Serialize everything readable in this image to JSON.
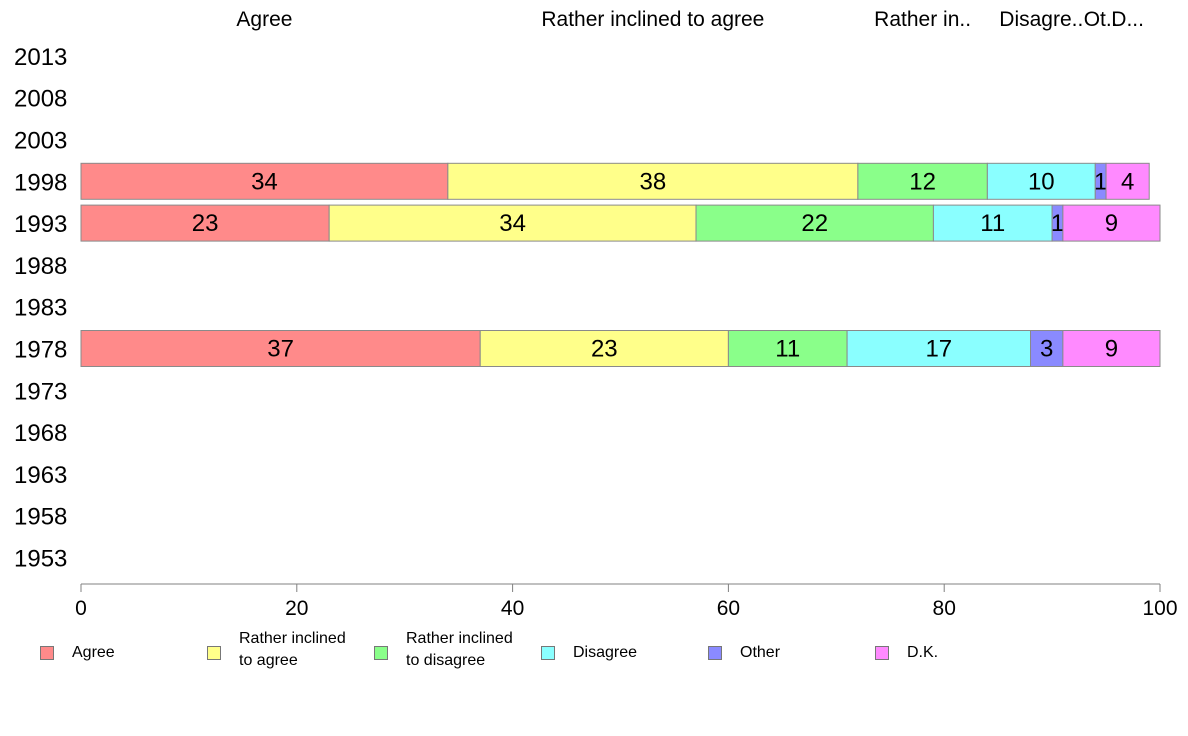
{
  "chart_data": {
    "type": "bar",
    "orientation": "horizontal",
    "stacked": true,
    "categories": [
      "2013",
      "2008",
      "2003",
      "1998",
      "1993",
      "1988",
      "1983",
      "1978",
      "1973",
      "1968",
      "1963",
      "1958",
      "1953"
    ],
    "series": [
      {
        "name": "Agree",
        "color": "#ff8a8a",
        "values": [
          null,
          null,
          null,
          34,
          23,
          null,
          null,
          37,
          null,
          null,
          null,
          null,
          null
        ]
      },
      {
        "name": "Rather inclined to agree",
        "color": "#ffff8a",
        "values": [
          null,
          null,
          null,
          38,
          34,
          null,
          null,
          23,
          null,
          null,
          null,
          null,
          null
        ]
      },
      {
        "name": "Rather inclined to disagree",
        "color": "#8aff8a",
        "values": [
          null,
          null,
          null,
          12,
          22,
          null,
          null,
          11,
          null,
          null,
          null,
          null,
          null
        ]
      },
      {
        "name": "Disagree",
        "color": "#8affff",
        "values": [
          null,
          null,
          null,
          10,
          11,
          null,
          null,
          17,
          null,
          null,
          null,
          null,
          null
        ]
      },
      {
        "name": "Other",
        "color": "#8a8aff",
        "values": [
          null,
          null,
          null,
          1,
          1,
          null,
          null,
          3,
          null,
          null,
          null,
          null,
          null
        ]
      },
      {
        "name": "D.K.",
        "color": "#ff8aff",
        "values": [
          null,
          null,
          null,
          4,
          9,
          null,
          null,
          9,
          null,
          null,
          null,
          null,
          null
        ]
      }
    ],
    "top_labels": [
      "Agree",
      "Rather inclined to agree",
      "Rather in..",
      "Disagre..",
      "Ot..",
      "D..."
    ],
    "xlim": [
      0,
      100
    ],
    "xticks": [
      0,
      20,
      40,
      60,
      80,
      100
    ],
    "grid": false,
    "legend_position": "bottom"
  },
  "legend": [
    {
      "label": "Agree",
      "color": "#ff8a8a"
    },
    {
      "label": "Rather inclined\nto agree",
      "color": "#ffff8a"
    },
    {
      "label": "Rather inclined\nto disagree",
      "color": "#8aff8a"
    },
    {
      "label": "Disagree",
      "color": "#8affff"
    },
    {
      "label": "Other",
      "color": "#8a8aff"
    },
    {
      "label": "D.K.",
      "color": "#ff8aff"
    }
  ]
}
